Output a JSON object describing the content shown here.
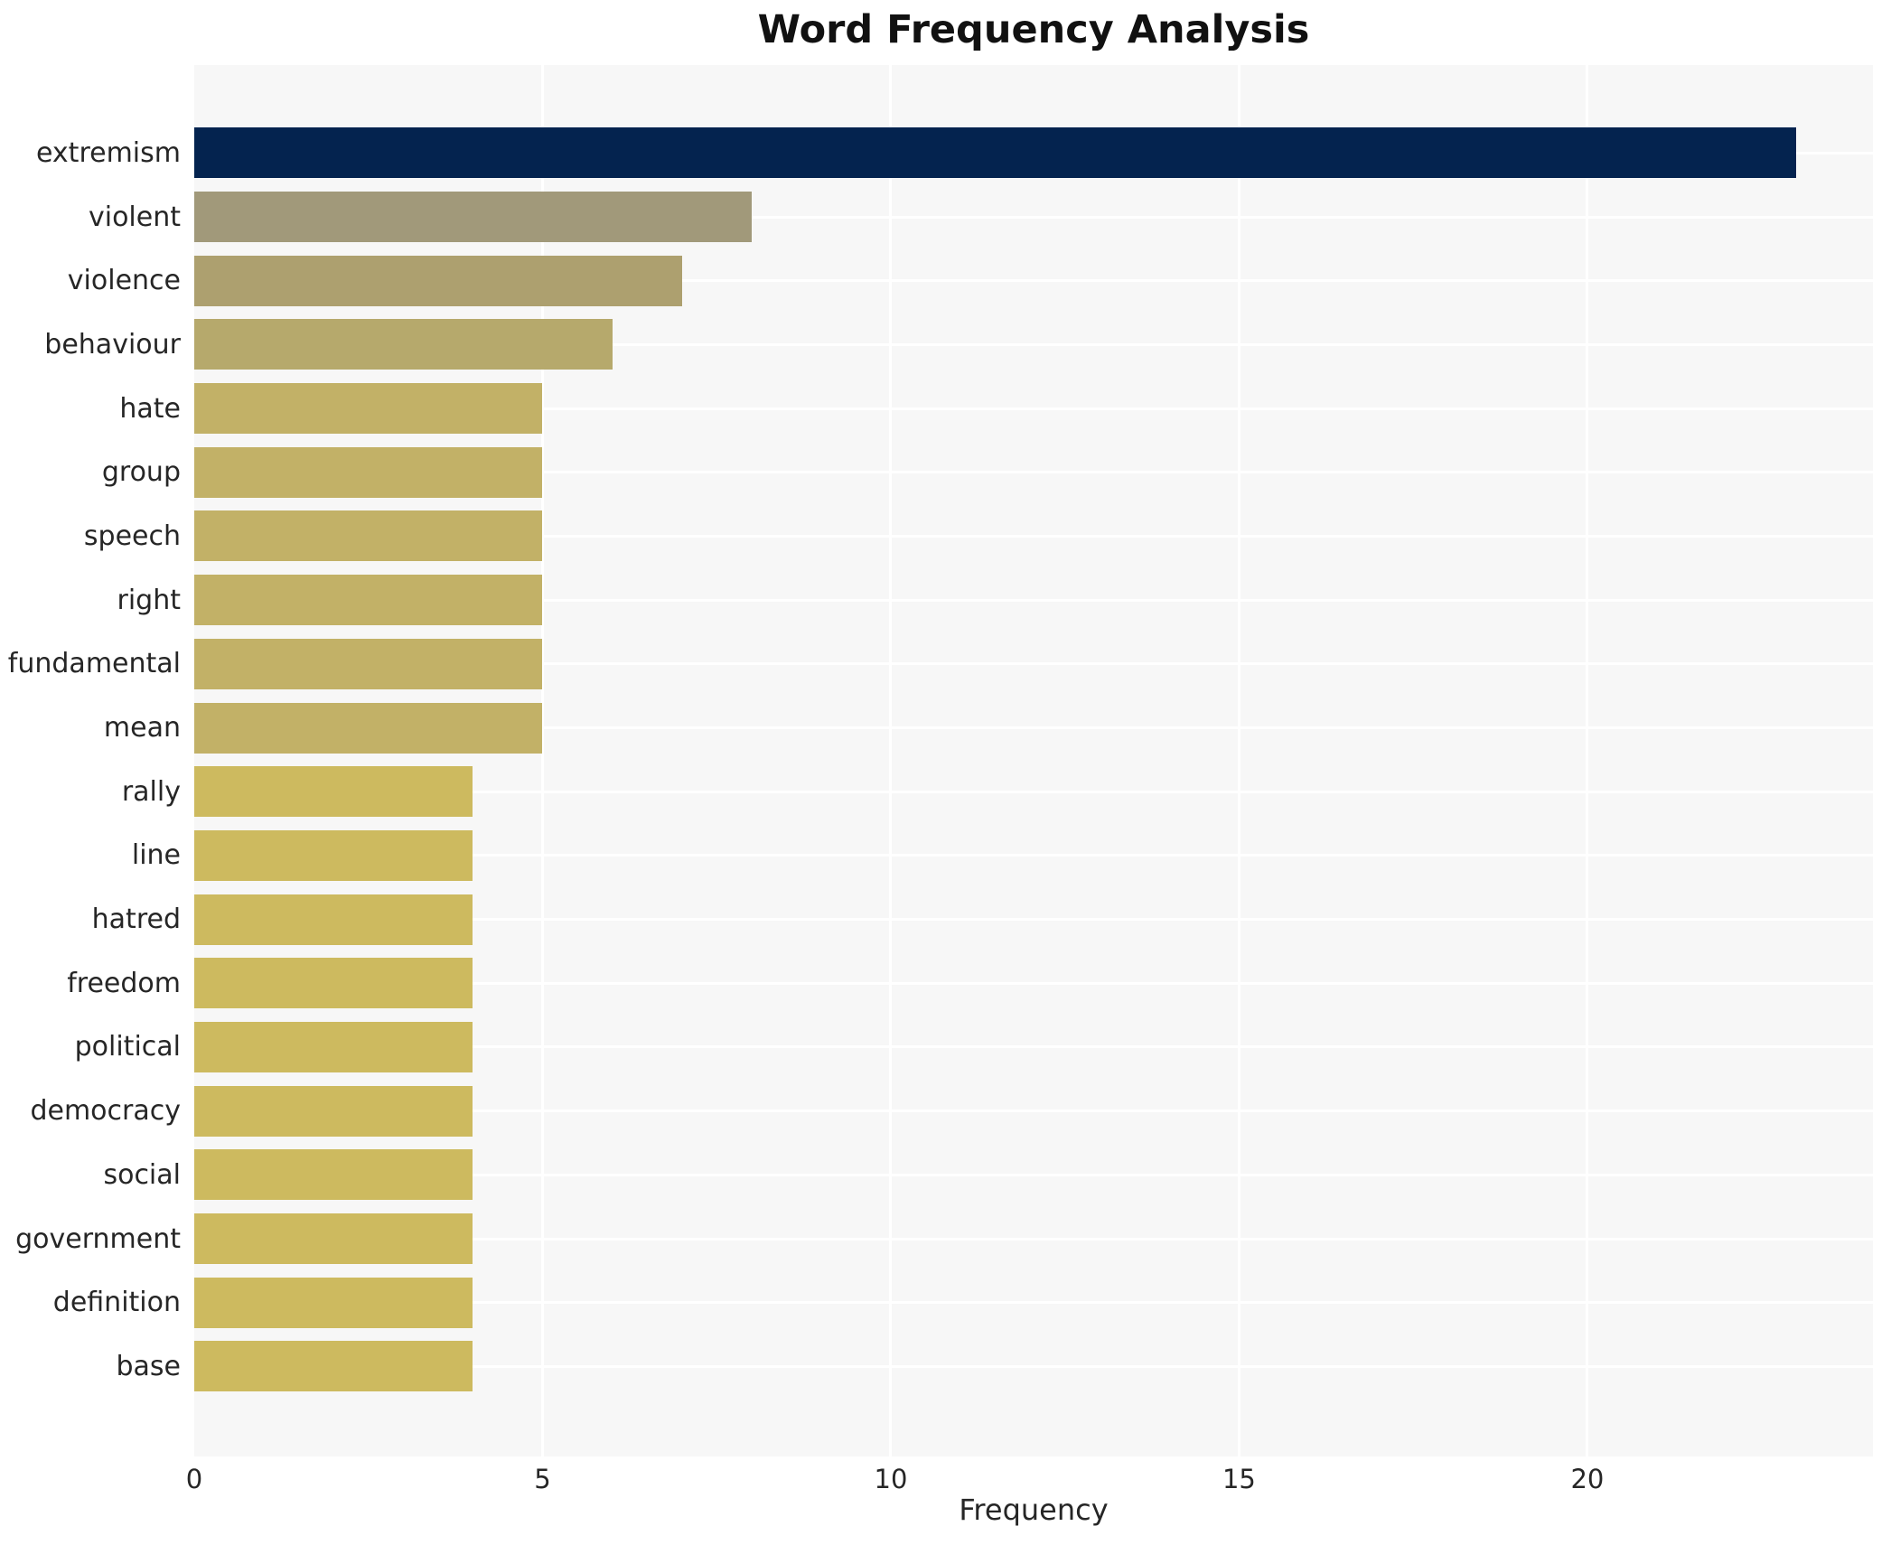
{
  "title": "Word Frequency Analysis",
  "chart_data": {
    "type": "bar",
    "orientation": "horizontal",
    "title": "Word Frequency Analysis",
    "xlabel": "Frequency",
    "ylabel": "",
    "categories": [
      "extremism",
      "violent",
      "violence",
      "behaviour",
      "hate",
      "group",
      "speech",
      "right",
      "fundamental",
      "mean",
      "rally",
      "line",
      "hatred",
      "freedom",
      "political",
      "democracy",
      "social",
      "government",
      "definition",
      "base"
    ],
    "values": [
      23,
      8,
      7,
      6,
      5,
      5,
      5,
      5,
      5,
      5,
      4,
      4,
      4,
      4,
      4,
      4,
      4,
      4,
      4,
      4
    ],
    "bar_colors": [
      "#04234f",
      "#a1997a",
      "#ada06f",
      "#b6a96c",
      "#c2b167",
      "#c2b167",
      "#c2b167",
      "#c2b167",
      "#c2b167",
      "#c2b167",
      "#cdba5f",
      "#cdba5f",
      "#cdba5f",
      "#cdba5f",
      "#cdba5f",
      "#cdba5f",
      "#cdba5f",
      "#cdba5f",
      "#cdba5f",
      "#cdba5f"
    ],
    "xticks": [
      0,
      5,
      10,
      15,
      20
    ],
    "xlim": [
      0,
      24.1
    ],
    "grid": true,
    "legend": "none",
    "plot_background_color": "#f7f7f7",
    "grid_color": "#ffffff",
    "text_color": "#262626"
  }
}
